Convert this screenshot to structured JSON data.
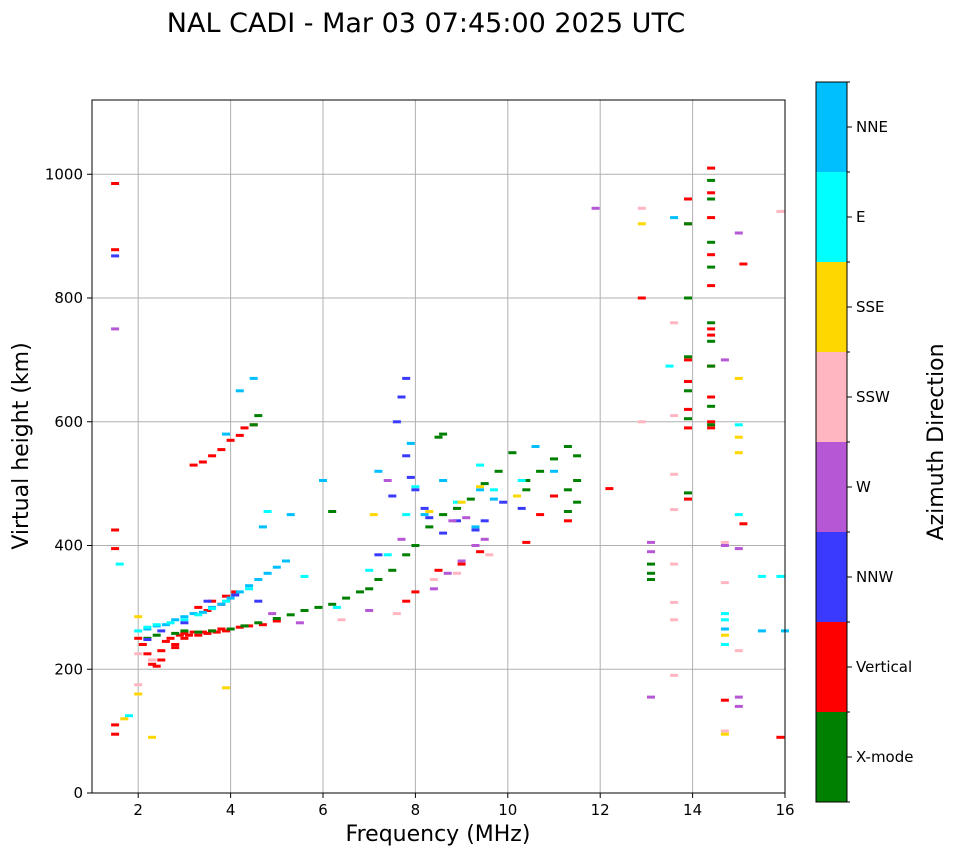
{
  "chart_data": {
    "type": "scatter",
    "title": "NAL CADI - Mar 03 07:45:00 2025 UTC",
    "xlabel": "Frequency (MHz)",
    "ylabel": "Virtual height (km)",
    "xlim": [
      1.0,
      16.0
    ],
    "ylim": [
      0,
      1120
    ],
    "xticks": [
      2,
      4,
      6,
      8,
      10,
      12,
      14,
      16
    ],
    "yticks": [
      0,
      200,
      400,
      600,
      800,
      1000
    ],
    "grid": true,
    "colorbar": {
      "label": "Azimuth Direction",
      "categories": [
        {
          "name": "X-mode",
          "color": "#008000"
        },
        {
          "name": "Vertical",
          "color": "#ff0000"
        },
        {
          "name": "NNW",
          "color": "#3a3aff"
        },
        {
          "name": "W",
          "color": "#b657d6"
        },
        {
          "name": "SSW",
          "color": "#ffb6c1"
        },
        {
          "name": "SSE",
          "color": "#ffd700"
        },
        {
          "name": "E",
          "color": "#00ffff"
        },
        {
          "name": "NNE",
          "color": "#00bfff"
        }
      ]
    },
    "series": [
      {
        "name": "Vertical",
        "points": [
          [
            1.5,
            985
          ],
          [
            1.5,
            878
          ],
          [
            1.5,
            425
          ],
          [
            1.5,
            395
          ],
          [
            1.5,
            110
          ],
          [
            1.5,
            95
          ],
          [
            2.0,
            250
          ],
          [
            2.1,
            240
          ],
          [
            2.2,
            225
          ],
          [
            2.3,
            215
          ],
          [
            2.4,
            205
          ],
          [
            2.5,
            230
          ],
          [
            2.6,
            245
          ],
          [
            2.7,
            250
          ],
          [
            2.8,
            240
          ],
          [
            2.9,
            255
          ],
          [
            3.0,
            250
          ],
          [
            3.1,
            255
          ],
          [
            3.2,
            260
          ],
          [
            3.3,
            255
          ],
          [
            3.4,
            260
          ],
          [
            3.5,
            258
          ],
          [
            3.6,
            262
          ],
          [
            3.7,
            260
          ],
          [
            3.8,
            265
          ],
          [
            3.9,
            262
          ],
          [
            4.0,
            265
          ],
          [
            4.2,
            268
          ],
          [
            4.4,
            270
          ],
          [
            4.7,
            272
          ],
          [
            5.0,
            278
          ],
          [
            3.2,
            530
          ],
          [
            3.4,
            535
          ],
          [
            3.6,
            545
          ],
          [
            3.8,
            555
          ],
          [
            4.0,
            570
          ],
          [
            4.2,
            578
          ],
          [
            4.5,
            595
          ],
          [
            4.3,
            590
          ],
          [
            3.3,
            300
          ],
          [
            3.6,
            310
          ],
          [
            3.9,
            318
          ],
          [
            4.1,
            325
          ],
          [
            2.3,
            208
          ],
          [
            2.5,
            215
          ],
          [
            2.8,
            235
          ],
          [
            3.0,
            258
          ],
          [
            3.5,
            295
          ],
          [
            3.8,
            305
          ],
          [
            8.0,
            325
          ],
          [
            8.5,
            360
          ],
          [
            9.0,
            370
          ],
          [
            9.4,
            390
          ],
          [
            7.8,
            310
          ],
          [
            10.4,
            405
          ],
          [
            10.7,
            450
          ],
          [
            11.0,
            480
          ],
          [
            11.3,
            440
          ],
          [
            12.2,
            492
          ],
          [
            12.9,
            800
          ],
          [
            13.9,
            960
          ],
          [
            13.9,
            475
          ],
          [
            13.9,
            590
          ],
          [
            13.9,
            620
          ],
          [
            13.9,
            665
          ],
          [
            13.9,
            700
          ],
          [
            13.9,
            800
          ],
          [
            13.9,
            920
          ],
          [
            14.4,
            1010
          ],
          [
            14.4,
            970
          ],
          [
            14.4,
            930
          ],
          [
            14.4,
            870
          ],
          [
            14.4,
            820
          ],
          [
            14.4,
            750
          ],
          [
            14.4,
            740
          ],
          [
            14.4,
            690
          ],
          [
            14.4,
            640
          ],
          [
            14.4,
            600
          ],
          [
            14.4,
            590
          ],
          [
            14.7,
            150
          ],
          [
            15.1,
            855
          ],
          [
            15.1,
            435
          ],
          [
            15.9,
            90
          ]
        ]
      },
      {
        "name": "X-mode",
        "points": [
          [
            2.2,
            250
          ],
          [
            2.4,
            255
          ],
          [
            2.8,
            258
          ],
          [
            3.0,
            262
          ],
          [
            3.3,
            260
          ],
          [
            3.6,
            262
          ],
          [
            4.0,
            265
          ],
          [
            4.3,
            270
          ],
          [
            4.6,
            275
          ],
          [
            5.0,
            282
          ],
          [
            5.3,
            288
          ],
          [
            5.6,
            295
          ],
          [
            5.9,
            300
          ],
          [
            6.2,
            305
          ],
          [
            6.5,
            315
          ],
          [
            6.8,
            325
          ],
          [
            7.0,
            330
          ],
          [
            7.2,
            345
          ],
          [
            7.5,
            360
          ],
          [
            7.8,
            385
          ],
          [
            8.0,
            400
          ],
          [
            8.3,
            430
          ],
          [
            8.6,
            450
          ],
          [
            8.9,
            460
          ],
          [
            9.2,
            475
          ],
          [
            9.5,
            500
          ],
          [
            9.8,
            520
          ],
          [
            10.1,
            550
          ],
          [
            4.5,
            595
          ],
          [
            4.6,
            610
          ],
          [
            6.2,
            455
          ],
          [
            8.5,
            575
          ],
          [
            8.6,
            580
          ],
          [
            10.4,
            490
          ],
          [
            10.4,
            505
          ],
          [
            10.7,
            520
          ],
          [
            11.0,
            540
          ],
          [
            11.3,
            560
          ],
          [
            11.3,
            490
          ],
          [
            11.3,
            455
          ],
          [
            11.5,
            470
          ],
          [
            11.5,
            545
          ],
          [
            11.5,
            505
          ],
          [
            13.1,
            370
          ],
          [
            13.1,
            355
          ],
          [
            13.1,
            345
          ],
          [
            14.4,
            990
          ],
          [
            14.4,
            960
          ],
          [
            14.4,
            890
          ],
          [
            14.4,
            850
          ],
          [
            14.4,
            760
          ],
          [
            14.4,
            730
          ],
          [
            14.4,
            690
          ],
          [
            14.4,
            625
          ],
          [
            14.4,
            595
          ],
          [
            13.9,
            920
          ],
          [
            13.9,
            800
          ],
          [
            13.9,
            705
          ],
          [
            13.9,
            650
          ],
          [
            13.9,
            605
          ],
          [
            13.9,
            485
          ]
        ]
      },
      {
        "name": "NNE",
        "points": [
          [
            2.2,
            265
          ],
          [
            2.4,
            270
          ],
          [
            2.6,
            272
          ],
          [
            2.8,
            280
          ],
          [
            3.0,
            285
          ],
          [
            3.2,
            290
          ],
          [
            3.4,
            292
          ],
          [
            3.6,
            300
          ],
          [
            3.8,
            305
          ],
          [
            4.0,
            315
          ],
          [
            4.2,
            325
          ],
          [
            4.4,
            335
          ],
          [
            4.6,
            345
          ],
          [
            4.8,
            355
          ],
          [
            5.0,
            365
          ],
          [
            5.2,
            375
          ],
          [
            3.9,
            580
          ],
          [
            4.2,
            650
          ],
          [
            4.5,
            670
          ],
          [
            4.7,
            430
          ],
          [
            5.3,
            450
          ],
          [
            6.0,
            505
          ],
          [
            7.2,
            520
          ],
          [
            7.9,
            565
          ],
          [
            8.2,
            450
          ],
          [
            8.6,
            505
          ],
          [
            9.3,
            430
          ],
          [
            9.4,
            490
          ],
          [
            9.7,
            475
          ],
          [
            10.6,
            560
          ],
          [
            11.0,
            520
          ],
          [
            13.6,
            930
          ],
          [
            14.7,
            265
          ],
          [
            15.5,
            262
          ],
          [
            16.0,
            262
          ]
        ]
      },
      {
        "name": "E",
        "points": [
          [
            2.0,
            262
          ],
          [
            2.2,
            268
          ],
          [
            2.4,
            272
          ],
          [
            2.7,
            275
          ],
          [
            3.0,
            280
          ],
          [
            3.3,
            288
          ],
          [
            3.6,
            298
          ],
          [
            3.9,
            310
          ],
          [
            4.1,
            320
          ],
          [
            4.4,
            330
          ],
          [
            1.6,
            370
          ],
          [
            1.8,
            125
          ],
          [
            4.8,
            455
          ],
          [
            5.6,
            350
          ],
          [
            6.3,
            300
          ],
          [
            7.0,
            360
          ],
          [
            7.4,
            385
          ],
          [
            7.8,
            450
          ],
          [
            8.0,
            495
          ],
          [
            8.9,
            470
          ],
          [
            9.4,
            530
          ],
          [
            9.7,
            490
          ],
          [
            10.3,
            505
          ],
          [
            13.5,
            690
          ],
          [
            14.7,
            290
          ],
          [
            14.7,
            280
          ],
          [
            14.7,
            240
          ],
          [
            15.0,
            595
          ],
          [
            15.0,
            450
          ],
          [
            15.5,
            350
          ],
          [
            15.9,
            350
          ]
        ]
      },
      {
        "name": "NNW",
        "points": [
          [
            1.5,
            868
          ],
          [
            7.8,
            670
          ],
          [
            7.7,
            640
          ],
          [
            7.6,
            600
          ],
          [
            7.8,
            545
          ],
          [
            7.9,
            510
          ],
          [
            8.0,
            490
          ],
          [
            8.2,
            460
          ],
          [
            8.3,
            445
          ],
          [
            8.6,
            420
          ],
          [
            8.9,
            440
          ],
          [
            9.3,
            425
          ],
          [
            9.5,
            440
          ],
          [
            9.9,
            470
          ],
          [
            10.3,
            460
          ],
          [
            7.5,
            480
          ],
          [
            7.2,
            385
          ],
          [
            3.5,
            310
          ],
          [
            4.1,
            320
          ],
          [
            4.6,
            310
          ],
          [
            3.0,
            275
          ],
          [
            2.5,
            262
          ],
          [
            2.2,
            248
          ]
        ]
      },
      {
        "name": "W",
        "points": [
          [
            1.5,
            750
          ],
          [
            7.4,
            505
          ],
          [
            8.4,
            330
          ],
          [
            8.7,
            355
          ],
          [
            9.0,
            375
          ],
          [
            9.3,
            400
          ],
          [
            9.5,
            410
          ],
          [
            8.8,
            440
          ],
          [
            9.1,
            445
          ],
          [
            7.7,
            410
          ],
          [
            7.0,
            295
          ],
          [
            11.9,
            945
          ],
          [
            13.1,
            405
          ],
          [
            13.1,
            390
          ],
          [
            13.1,
            155
          ],
          [
            14.7,
            700
          ],
          [
            14.7,
            400
          ],
          [
            15.0,
            905
          ],
          [
            15.0,
            395
          ],
          [
            15.0,
            155
          ],
          [
            15.0,
            140
          ],
          [
            4.9,
            290
          ],
          [
            5.5,
            275
          ]
        ]
      },
      {
        "name": "SSW",
        "points": [
          [
            2.0,
            225
          ],
          [
            2.3,
            215
          ],
          [
            2.0,
            175
          ],
          [
            6.4,
            280
          ],
          [
            7.6,
            290
          ],
          [
            8.4,
            345
          ],
          [
            8.9,
            355
          ],
          [
            9.6,
            385
          ],
          [
            12.9,
            945
          ],
          [
            12.9,
            600
          ],
          [
            13.6,
            760
          ],
          [
            13.6,
            610
          ],
          [
            13.6,
            515
          ],
          [
            13.6,
            458
          ],
          [
            13.6,
            370
          ],
          [
            13.6,
            308
          ],
          [
            13.6,
            280
          ],
          [
            13.6,
            190
          ],
          [
            14.7,
            405
          ],
          [
            14.7,
            340
          ],
          [
            14.7,
            100
          ],
          [
            15.0,
            230
          ],
          [
            15.9,
            940
          ]
        ]
      },
      {
        "name": "SSE",
        "points": [
          [
            2.0,
            285
          ],
          [
            2.0,
            160
          ],
          [
            1.7,
            120
          ],
          [
            2.3,
            90
          ],
          [
            3.9,
            170
          ],
          [
            8.3,
            455
          ],
          [
            9.0,
            470
          ],
          [
            9.4,
            495
          ],
          [
            10.2,
            480
          ],
          [
            7.1,
            450
          ],
          [
            12.9,
            920
          ],
          [
            14.7,
            255
          ],
          [
            14.7,
            95
          ],
          [
            15.0,
            670
          ],
          [
            15.0,
            575
          ],
          [
            15.0,
            550
          ]
        ]
      }
    ]
  }
}
